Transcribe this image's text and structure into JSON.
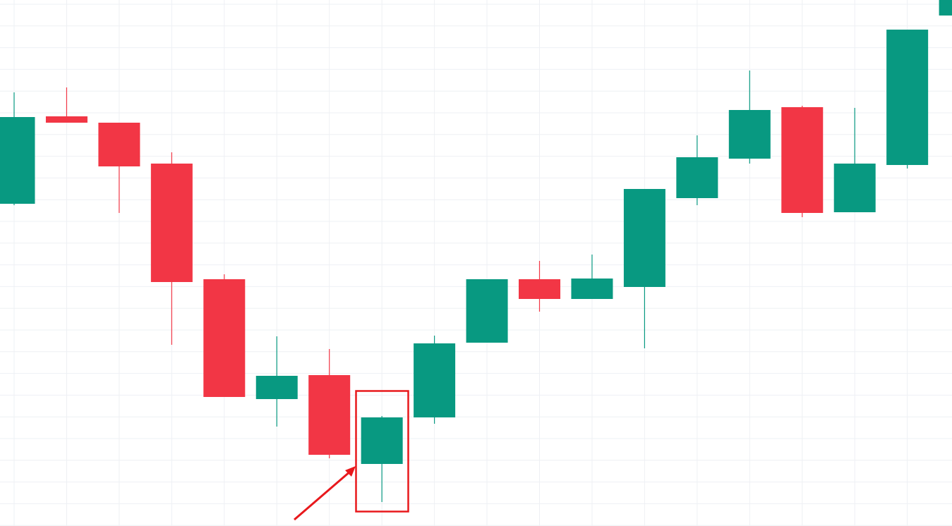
{
  "chart_data": {
    "type": "candlestick",
    "categories": [
      null,
      null,
      null,
      null,
      null,
      null,
      null,
      null,
      null,
      null,
      null,
      null,
      null,
      null,
      null,
      null,
      null,
      null,
      null
    ],
    "open": [
      457,
      581,
      572,
      514,
      350,
      180,
      214,
      88,
      154,
      260,
      350,
      322,
      339,
      465,
      521,
      594,
      445,
      512,
      724
    ],
    "high": [
      615,
      622,
      572,
      530,
      357,
      269,
      251,
      156,
      270,
      350,
      376,
      385,
      478,
      554,
      646,
      596,
      593,
      704,
      746
    ],
    "low": [
      455,
      572,
      444,
      257,
      183,
      141,
      96,
      34,
      145,
      260,
      304,
      322,
      252,
      455,
      514,
      438,
      445,
      507,
      724
    ],
    "close": [
      580,
      572,
      510,
      346,
      183,
      213,
      101,
      154,
      259,
      350,
      322,
      351,
      478,
      523,
      590,
      444,
      514,
      704,
      746
    ],
    "up_color": "#089981",
    "down_color": "#f23645",
    "ylim": [
      0,
      746
    ],
    "grid": true
  }
}
